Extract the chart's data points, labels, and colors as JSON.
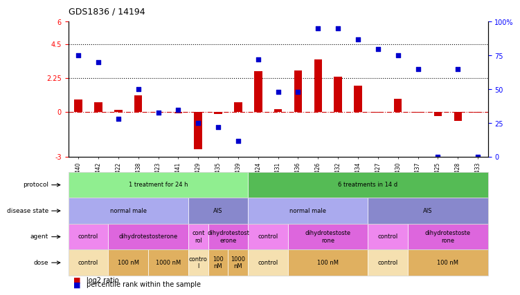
{
  "title": "GDS1836 / 14194",
  "samples": [
    "GSM88440",
    "GSM88442",
    "GSM88422",
    "GSM88438",
    "GSM88423",
    "GSM88441",
    "GSM88429",
    "GSM88435",
    "GSM88439",
    "GSM88424",
    "GSM88431",
    "GSM88436",
    "GSM88426",
    "GSM88432",
    "GSM88434",
    "GSM88427",
    "GSM88430",
    "GSM88437",
    "GSM88425",
    "GSM88428",
    "GSM88433"
  ],
  "log2_ratio": [
    0.8,
    0.65,
    0.15,
    1.1,
    0.0,
    -0.12,
    -2.5,
    -0.15,
    0.65,
    2.7,
    0.18,
    2.75,
    3.5,
    2.35,
    1.75,
    -0.05,
    0.85,
    -0.05,
    -0.28,
    -0.6,
    -0.05
  ],
  "percentile_pct": [
    75,
    70,
    28,
    50,
    33,
    35,
    25,
    22,
    12,
    72,
    48,
    48,
    95,
    95,
    87,
    80,
    75,
    65,
    0,
    65,
    0
  ],
  "ylim_left": [
    -3,
    6
  ],
  "ylim_right": [
    0,
    100
  ],
  "bar_color": "#cc0000",
  "dot_color": "#0000cc",
  "zero_line_color": "#cc0000",
  "protocol_groups": [
    {
      "label": "1 treatment for 24 h",
      "start": 0,
      "end": 9,
      "color": "#90ee90"
    },
    {
      "label": "6 treatments in 14 d",
      "start": 9,
      "end": 21,
      "color": "#55bb55"
    }
  ],
  "disease_groups": [
    {
      "label": "normal male",
      "start": 0,
      "end": 6,
      "color": "#aaaaee"
    },
    {
      "label": "AIS",
      "start": 6,
      "end": 9,
      "color": "#8888cc"
    },
    {
      "label": "normal male",
      "start": 9,
      "end": 15,
      "color": "#aaaaee"
    },
    {
      "label": "AIS",
      "start": 15,
      "end": 21,
      "color": "#8888cc"
    }
  ],
  "agent_groups": [
    {
      "label": "control",
      "start": 0,
      "end": 2,
      "color": "#ee88ee"
    },
    {
      "label": "dihydrotestosterone",
      "start": 2,
      "end": 6,
      "color": "#dd66dd"
    },
    {
      "label": "cont\nrol",
      "start": 6,
      "end": 7,
      "color": "#ee88ee"
    },
    {
      "label": "dihydrotestost\nerone",
      "start": 7,
      "end": 9,
      "color": "#dd66dd"
    },
    {
      "label": "control",
      "start": 9,
      "end": 11,
      "color": "#ee88ee"
    },
    {
      "label": "dihydrotestoste\nrone",
      "start": 11,
      "end": 15,
      "color": "#dd66dd"
    },
    {
      "label": "control",
      "start": 15,
      "end": 17,
      "color": "#ee88ee"
    },
    {
      "label": "dihydrotestoste\nrone",
      "start": 17,
      "end": 21,
      "color": "#dd66dd"
    }
  ],
  "dose_groups": [
    {
      "label": "control",
      "start": 0,
      "end": 2,
      "color": "#f5e0b0"
    },
    {
      "label": "100 nM",
      "start": 2,
      "end": 4,
      "color": "#e0b060"
    },
    {
      "label": "1000 nM",
      "start": 4,
      "end": 6,
      "color": "#e0b060"
    },
    {
      "label": "contro\nl",
      "start": 6,
      "end": 7,
      "color": "#f5e0b0"
    },
    {
      "label": "100\nnM",
      "start": 7,
      "end": 8,
      "color": "#e0b060"
    },
    {
      "label": "1000\nnM",
      "start": 8,
      "end": 9,
      "color": "#e0b060"
    },
    {
      "label": "control",
      "start": 9,
      "end": 11,
      "color": "#f5e0b0"
    },
    {
      "label": "100 nM",
      "start": 11,
      "end": 15,
      "color": "#e0b060"
    },
    {
      "label": "control",
      "start": 15,
      "end": 17,
      "color": "#f5e0b0"
    },
    {
      "label": "100 nM",
      "start": 17,
      "end": 21,
      "color": "#e0b060"
    }
  ],
  "row_labels": [
    "protocol",
    "disease state",
    "agent",
    "dose"
  ]
}
